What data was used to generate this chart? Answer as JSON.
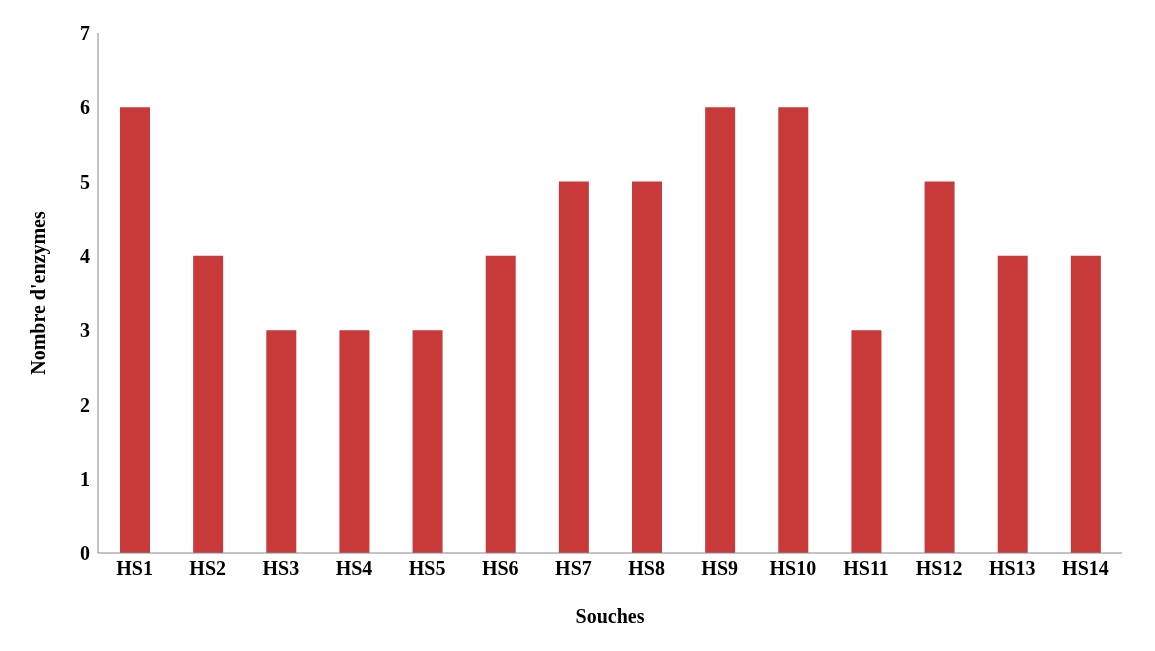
{
  "chart_data": {
    "type": "bar",
    "xlabel": "Souches",
    "ylabel": "Nombre d'enzymes",
    "categories": [
      "HS1",
      "HS2",
      "HS3",
      "HS4",
      "HS5",
      "HS6",
      "HS7",
      "HS8",
      "HS9",
      "HS10",
      "HS11",
      "HS12",
      "HS13",
      "HS14"
    ],
    "values": [
      6,
      4,
      3,
      3,
      3,
      4,
      5,
      5,
      6,
      6,
      3,
      5,
      4,
      4
    ],
    "color": "#c83a3a",
    "ylim": [
      0,
      7
    ],
    "yticks": [
      0,
      1,
      2,
      3,
      4,
      5,
      6,
      7
    ],
    "grid": false,
    "legend": false
  }
}
